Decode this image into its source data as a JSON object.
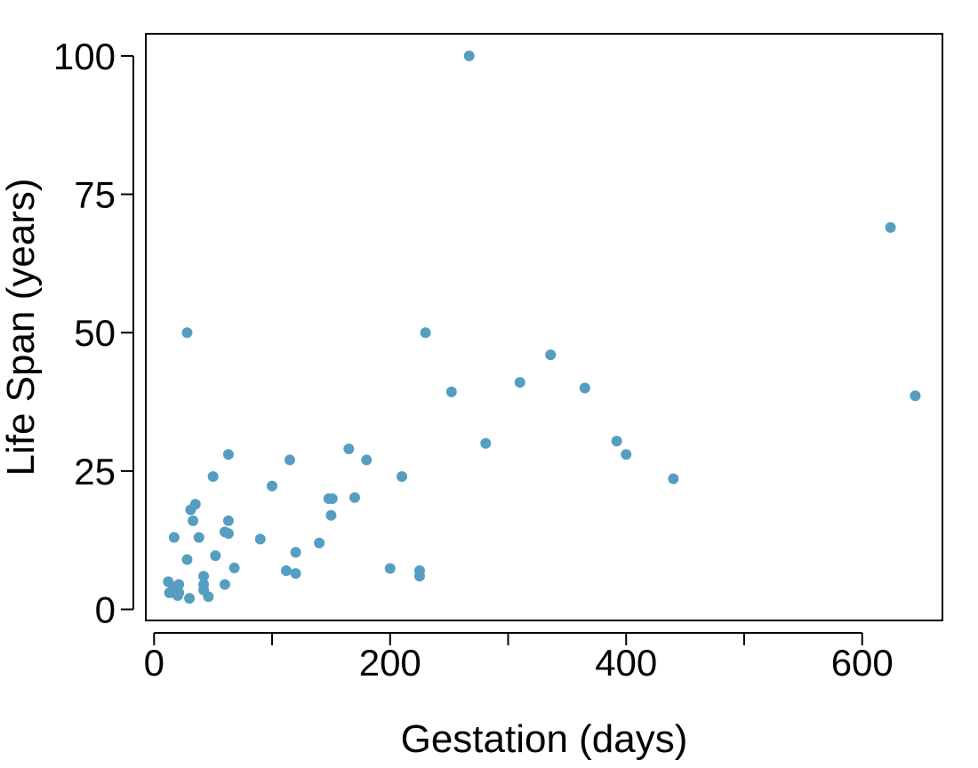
{
  "chart_data": {
    "type": "scatter",
    "title": "",
    "xlabel": "Gestation (days)",
    "ylabel": "Life Span (years)",
    "xlim": [
      -7,
      668
    ],
    "ylim": [
      -2,
      104
    ],
    "x_ticks": [
      0,
      100,
      200,
      300,
      400,
      500,
      600
    ],
    "x_tick_labels": [
      "0",
      "",
      "200",
      "",
      "400",
      "",
      "600"
    ],
    "y_ticks": [
      0,
      25,
      50,
      75,
      100
    ],
    "y_tick_labels": [
      "0",
      "25",
      "50",
      "75",
      "100"
    ],
    "grid": false,
    "legend": "none",
    "point_color": "#559ec1",
    "points": [
      {
        "x": 12,
        "y": 5
      },
      {
        "x": 13,
        "y": 3
      },
      {
        "x": 16,
        "y": 4
      },
      {
        "x": 17,
        "y": 3
      },
      {
        "x": 20,
        "y": 2.5
      },
      {
        "x": 21,
        "y": 4.5
      },
      {
        "x": 21,
        "y": 3
      },
      {
        "x": 17,
        "y": 13
      },
      {
        "x": 28,
        "y": 9
      },
      {
        "x": 30,
        "y": 2
      },
      {
        "x": 31,
        "y": 18
      },
      {
        "x": 33,
        "y": 16
      },
      {
        "x": 35,
        "y": 19
      },
      {
        "x": 38,
        "y": 13
      },
      {
        "x": 42,
        "y": 6
      },
      {
        "x": 42,
        "y": 4.5
      },
      {
        "x": 42,
        "y": 3.5
      },
      {
        "x": 46,
        "y": 2.3
      },
      {
        "x": 50,
        "y": 24
      },
      {
        "x": 52,
        "y": 9.7
      },
      {
        "x": 60,
        "y": 4.5
      },
      {
        "x": 60,
        "y": 14
      },
      {
        "x": 63,
        "y": 13.7
      },
      {
        "x": 63,
        "y": 16
      },
      {
        "x": 63,
        "y": 28
      },
      {
        "x": 68,
        "y": 7.5
      },
      {
        "x": 28,
        "y": 50
      },
      {
        "x": 90,
        "y": 12.7
      },
      {
        "x": 100,
        "y": 22.3
      },
      {
        "x": 112,
        "y": 7
      },
      {
        "x": 115,
        "y": 27
      },
      {
        "x": 120,
        "y": 6.5
      },
      {
        "x": 120,
        "y": 10.3
      },
      {
        "x": 140,
        "y": 12
      },
      {
        "x": 148,
        "y": 20
      },
      {
        "x": 150,
        "y": 17
      },
      {
        "x": 151,
        "y": 20
      },
      {
        "x": 165,
        "y": 29
      },
      {
        "x": 170,
        "y": 20.2
      },
      {
        "x": 180,
        "y": 27
      },
      {
        "x": 200,
        "y": 7.4
      },
      {
        "x": 210,
        "y": 24
      },
      {
        "x": 225,
        "y": 7
      },
      {
        "x": 225,
        "y": 6
      },
      {
        "x": 230,
        "y": 50
      },
      {
        "x": 252,
        "y": 39.3
      },
      {
        "x": 267,
        "y": 100
      },
      {
        "x": 281,
        "y": 30
      },
      {
        "x": 310,
        "y": 41
      },
      {
        "x": 336,
        "y": 46
      },
      {
        "x": 365,
        "y": 40
      },
      {
        "x": 392,
        "y": 30.4
      },
      {
        "x": 400,
        "y": 28
      },
      {
        "x": 440,
        "y": 23.6
      },
      {
        "x": 624,
        "y": 69
      },
      {
        "x": 645,
        "y": 38.6
      }
    ]
  }
}
